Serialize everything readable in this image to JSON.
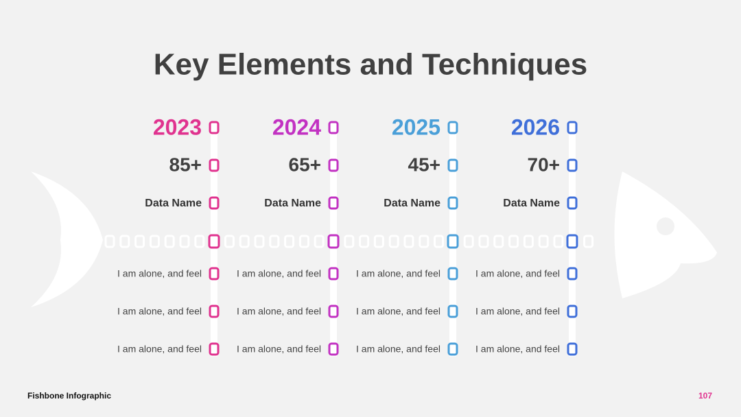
{
  "header": {
    "title": "Key Elements and Techniques"
  },
  "columns": [
    {
      "year": "2023",
      "value": "85+",
      "name": "Data Name",
      "color": "#e0338f",
      "items": [
        "I am alone, and feel",
        "I am alone, and feel",
        "I am alone, and feel"
      ]
    },
    {
      "year": "2024",
      "value": "65+",
      "name": "Data Name",
      "color": "#c232c2",
      "items": [
        "I am alone, and feel",
        "I am alone, and feel",
        "I am alone, and feel"
      ]
    },
    {
      "year": "2025",
      "value": "45+",
      "name": "Data Name",
      "color": "#4a9fd8",
      "items": [
        "I am alone, and feel",
        "I am alone, and feel",
        "I am alone, and feel"
      ]
    },
    {
      "year": "2026",
      "value": "70+",
      "name": "Data Name",
      "color": "#3f6fd9",
      "items": [
        "I am alone, and feel",
        "I am alone, and feel",
        "I am alone, and feel"
      ]
    }
  ],
  "footer": {
    "label": "Fishbone Infographic",
    "page": "107"
  }
}
